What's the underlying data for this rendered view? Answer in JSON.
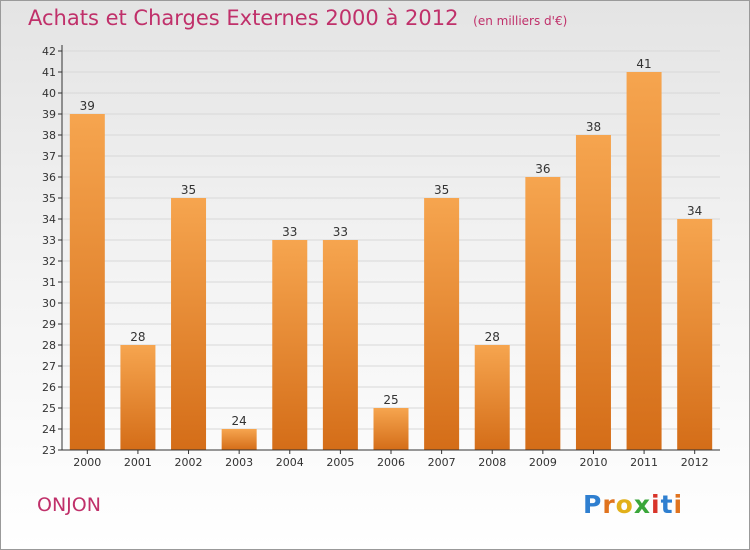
{
  "title": "Achats et Charges Externes 2000 à 2012",
  "subtitle": "(en milliers d'€)",
  "location": "ONJON",
  "logo": {
    "letters": [
      "P",
      "r",
      "o",
      "x",
      "i",
      "t",
      "i"
    ],
    "colors": [
      "#2f7fd0",
      "#e0731e",
      "#e2b01a",
      "#3aa63a",
      "#d8342a",
      "#2f7fd0",
      "#e0731e"
    ]
  },
  "colors": {
    "title": "#c0306a",
    "bar_light": "#f6a54f",
    "bar_dark": "#d46d18",
    "axis": "#333333",
    "grid": "#d8d8d8"
  },
  "chart_data": {
    "type": "bar",
    "categories": [
      "2000",
      "2001",
      "2002",
      "2003",
      "2004",
      "2005",
      "2006",
      "2007",
      "2008",
      "2009",
      "2010",
      "2011",
      "2012"
    ],
    "values": [
      39,
      28,
      35,
      24,
      33,
      33,
      25,
      35,
      28,
      36,
      38,
      41,
      34
    ],
    "ylim": [
      23,
      42
    ],
    "yticks": [
      23,
      24,
      25,
      26,
      27,
      28,
      29,
      30,
      31,
      32,
      33,
      34,
      35,
      36,
      37,
      38,
      39,
      40,
      41,
      42
    ],
    "grid": true,
    "legend": "none"
  }
}
